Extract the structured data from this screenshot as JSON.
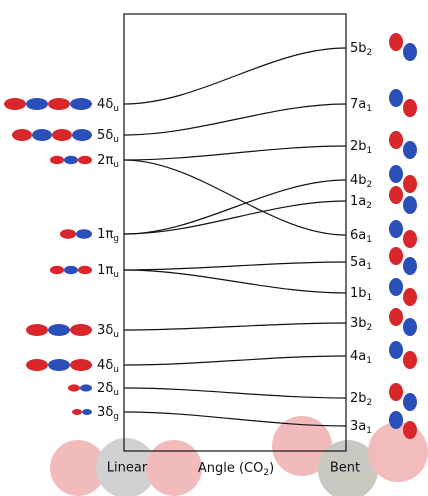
{
  "left_levels": [
    {
      "label": "4δ",
      "sub": "u"
    },
    {
      "label": "5δ",
      "sub": "u"
    },
    {
      "label": "2π",
      "sub": "u"
    },
    {
      "label": "1π",
      "sub": "g"
    },
    {
      "label": "1π",
      "sub": "u"
    },
    {
      "label": "3δ",
      "sub": "u"
    },
    {
      "label": "4δ",
      "sub": "u"
    },
    {
      "label": "2δ",
      "sub": "u"
    },
    {
      "label": "3δ",
      "sub": "g"
    }
  ],
  "right_levels": [
    {
      "label": "5b",
      "sub": "2"
    },
    {
      "label": "7a",
      "sub": "1"
    },
    {
      "label": "2b",
      "sub": "1"
    },
    {
      "label": "4b",
      "sub": "2"
    },
    {
      "label": "1a",
      "sub": "2"
    },
    {
      "label": "6a",
      "sub": "1"
    },
    {
      "label": "5a",
      "sub": "1"
    },
    {
      "label": "1b",
      "sub": "1"
    },
    {
      "label": "3b",
      "sub": "2"
    },
    {
      "label": "4a",
      "sub": "1"
    },
    {
      "label": "2b",
      "sub": "2"
    },
    {
      "label": "3a",
      "sub": "1"
    }
  ],
  "axis": {
    "left": "Linear",
    "middle": "Angle (CO",
    "middle_sub": "2",
    "middle_end": ")",
    "right": "Bent"
  }
}
